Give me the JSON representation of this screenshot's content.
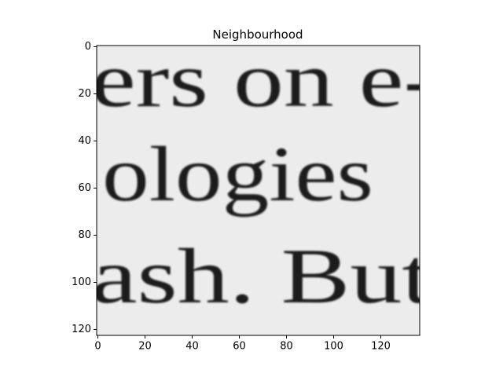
{
  "chart_data": {
    "type": "image",
    "title": "Neighbourhood",
    "image_text": [
      "ers on e-",
      "ologies",
      "ash. But"
    ],
    "xlim": [
      -0.5,
      136.5
    ],
    "xticks": [
      0,
      20,
      40,
      60,
      80,
      100,
      120
    ],
    "ylim": [
      122.5,
      -0.5
    ],
    "yticks": [
      0,
      20,
      40,
      60,
      80,
      100,
      120
    ]
  }
}
